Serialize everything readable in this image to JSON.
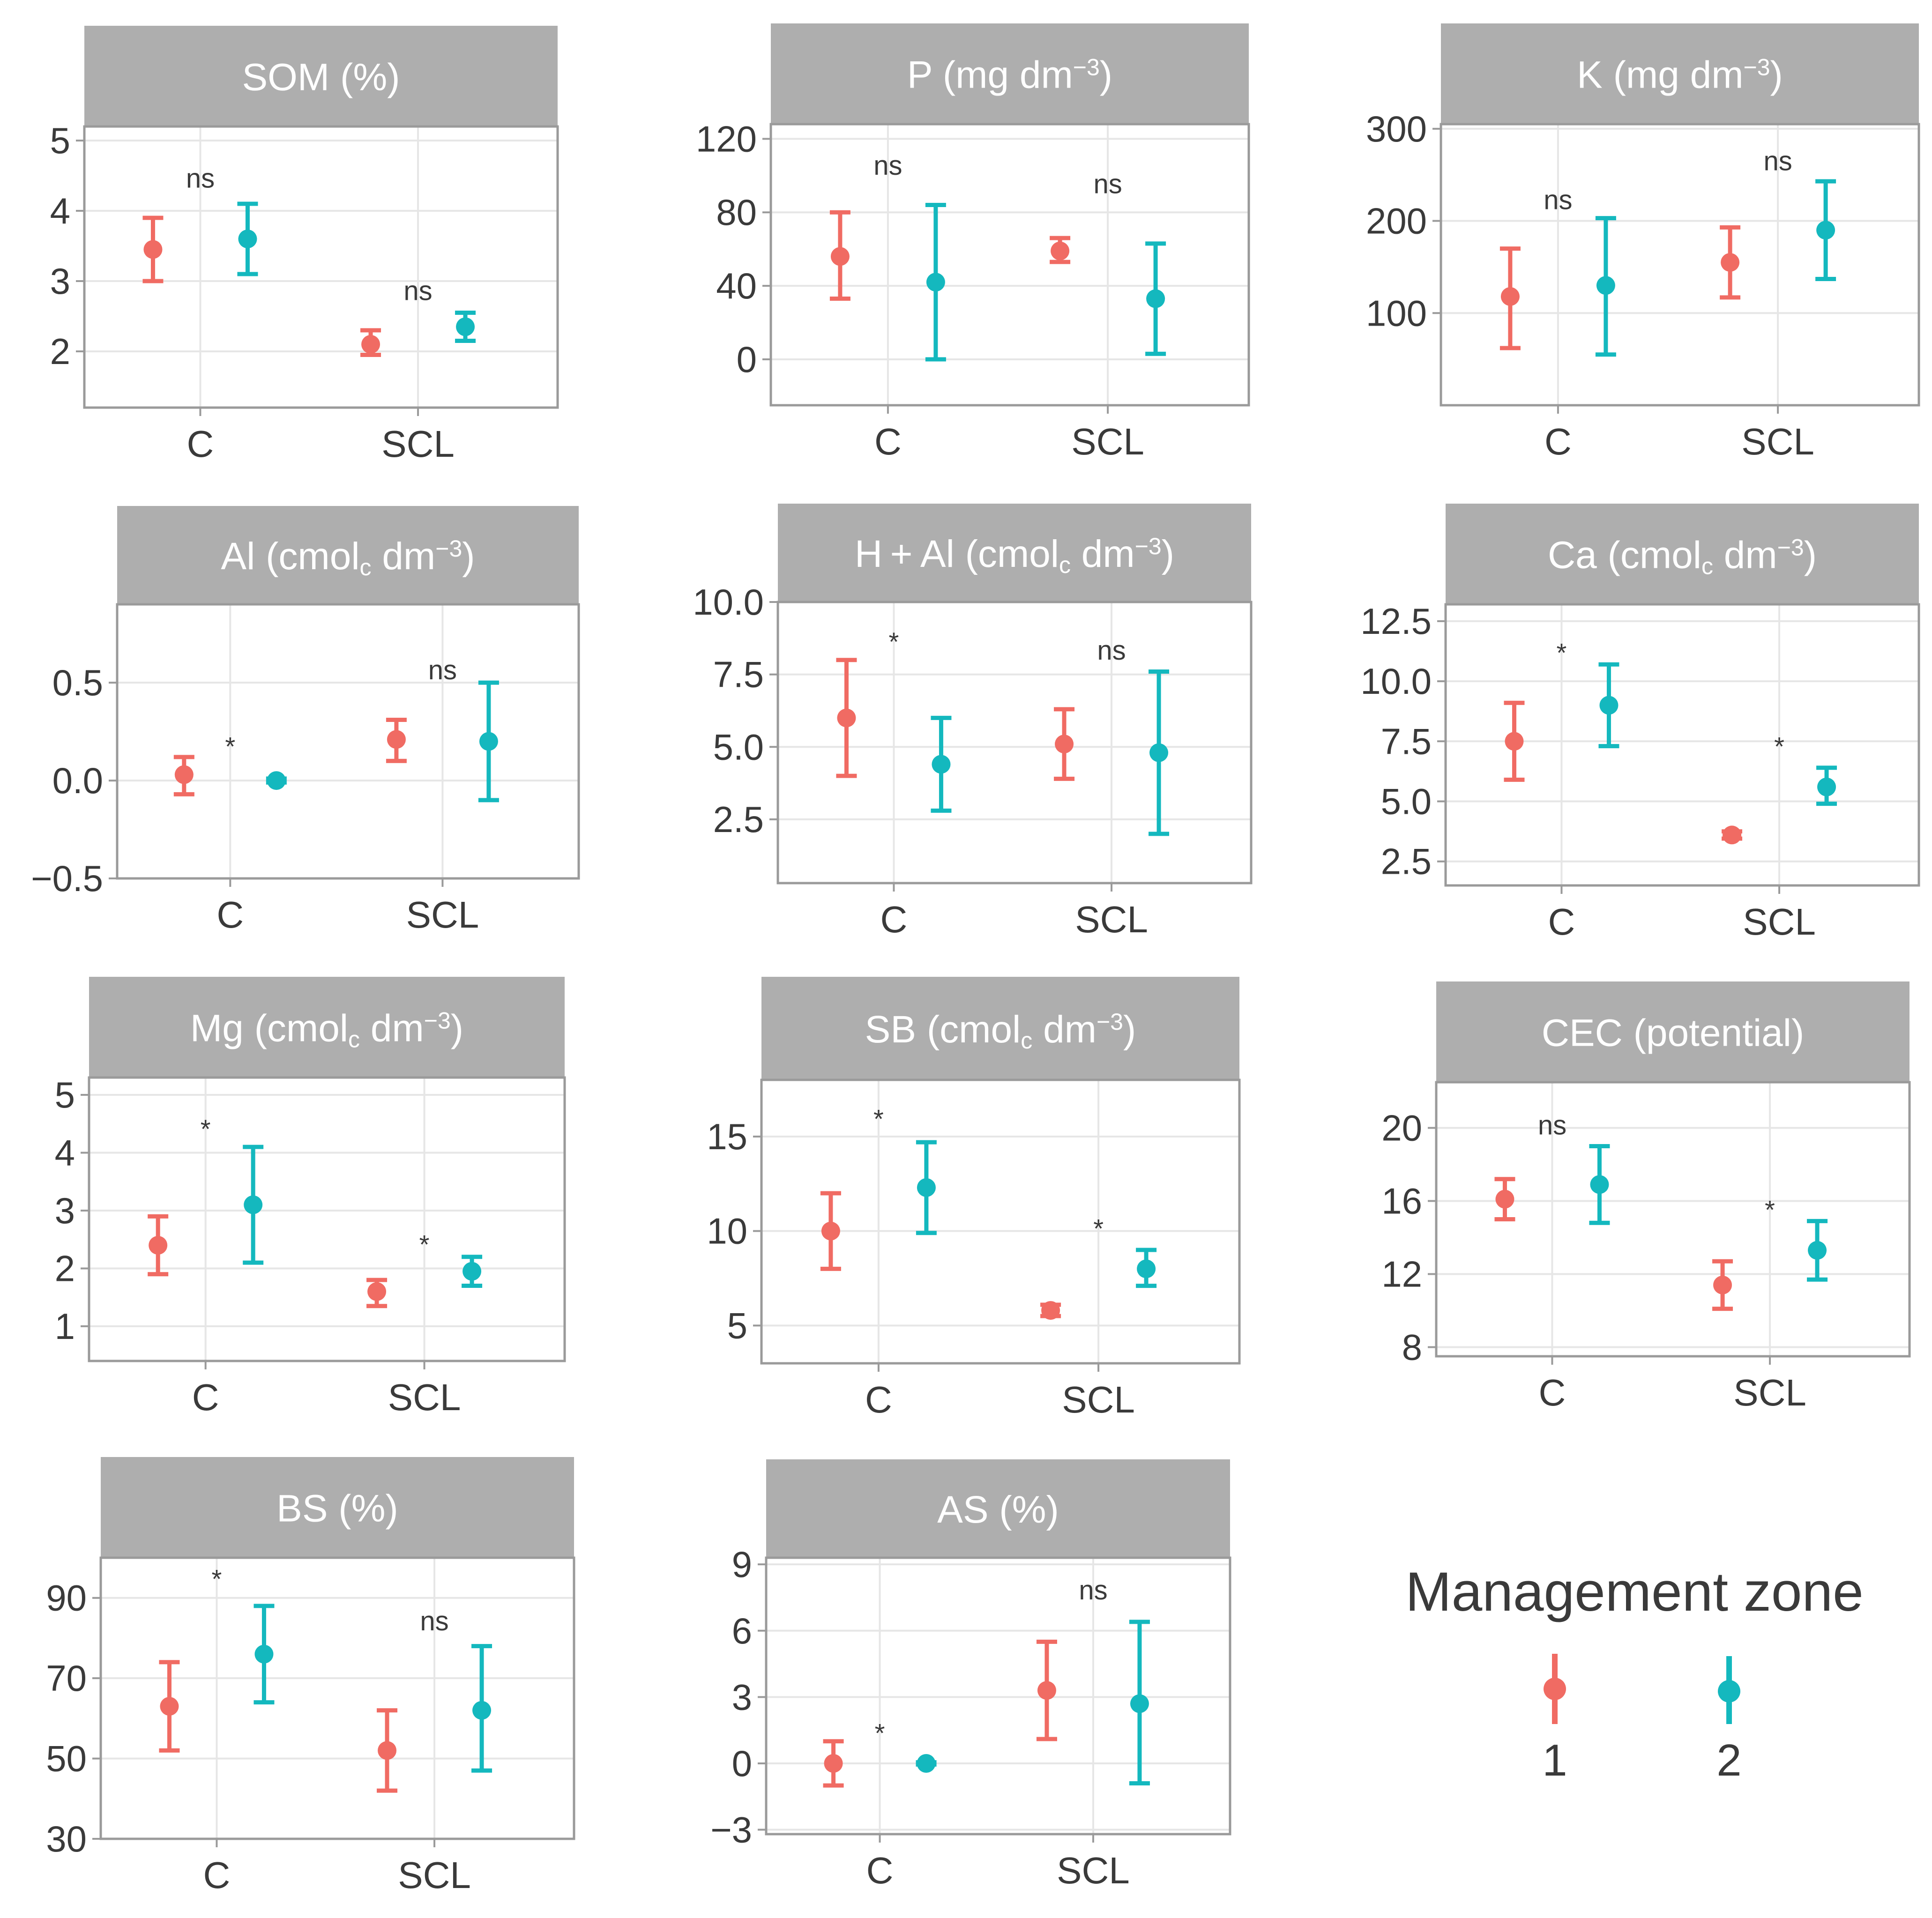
{
  "colors": {
    "zone1": "#F06B63",
    "zone2": "#14B8BE",
    "strip": "#AEAEAE",
    "grid": "#E6E6E6",
    "border": "#9A9A9A",
    "text": "#3A3A3A",
    "stripText": "#FFFFFF"
  },
  "legend": {
    "title": "Management zone",
    "items": [
      {
        "label": "1",
        "color_key": "zone1"
      },
      {
        "label": "2",
        "color_key": "zone2"
      }
    ]
  },
  "chart_data": [
    {
      "type": "errorbar",
      "title": "SOM (%)",
      "categories": [
        "C",
        "SCL"
      ],
      "ylim": [
        1.2,
        5.2
      ],
      "yticks": [
        {
          "v": 2,
          "t": "2"
        },
        {
          "v": 3,
          "t": "3"
        },
        {
          "v": 4,
          "t": "4"
        },
        {
          "v": 5,
          "t": "5"
        }
      ],
      "series": [
        {
          "name": "1",
          "points": [
            {
              "mean": 3.45,
              "lo": 3.0,
              "hi": 3.9
            },
            {
              "mean": 2.1,
              "lo": 1.95,
              "hi": 2.3
            }
          ]
        },
        {
          "name": "2",
          "points": [
            {
              "mean": 3.6,
              "lo": 3.1,
              "hi": 4.1
            },
            {
              "mean": 2.35,
              "lo": 2.15,
              "hi": 2.55
            }
          ]
        }
      ],
      "significance": [
        {
          "text": "ns",
          "y": 4.45
        },
        {
          "text": "ns",
          "y": 2.85
        }
      ]
    },
    {
      "type": "errorbar",
      "title": "P (mg dm",
      "title_sup": "−3",
      "title_end": ")",
      "categories": [
        "C",
        "SCL"
      ],
      "ylim": [
        -25,
        128
      ],
      "yticks": [
        {
          "v": 0,
          "t": "0"
        },
        {
          "v": 40,
          "t": "40"
        },
        {
          "v": 80,
          "t": "80"
        },
        {
          "v": 120,
          "t": "120"
        }
      ],
      "series": [
        {
          "name": "1",
          "points": [
            {
              "mean": 56,
              "lo": 33,
              "hi": 80
            },
            {
              "mean": 59,
              "lo": 53,
              "hi": 66
            }
          ]
        },
        {
          "name": "2",
          "points": [
            {
              "mean": 42,
              "lo": 0,
              "hi": 84
            },
            {
              "mean": 33,
              "lo": 3,
              "hi": 63
            }
          ]
        }
      ],
      "significance": [
        {
          "text": "ns",
          "y": 105
        },
        {
          "text": "ns",
          "y": 95
        }
      ]
    },
    {
      "type": "errorbar",
      "title": "K (mg dm",
      "title_sup": "−3",
      "title_end": ")",
      "categories": [
        "C",
        "SCL"
      ],
      "ylim": [
        0,
        305
      ],
      "yticks": [
        {
          "v": 100,
          "t": "100"
        },
        {
          "v": 200,
          "t": "200"
        },
        {
          "v": 300,
          "t": "300"
        }
      ],
      "series": [
        {
          "name": "1",
          "points": [
            {
              "mean": 118,
              "lo": 62,
              "hi": 170
            },
            {
              "mean": 155,
              "lo": 117,
              "hi": 193
            }
          ]
        },
        {
          "name": "2",
          "points": [
            {
              "mean": 130,
              "lo": 55,
              "hi": 203
            },
            {
              "mean": 190,
              "lo": 137,
              "hi": 243
            }
          ]
        }
      ],
      "significance": [
        {
          "text": "ns",
          "y": 222
        },
        {
          "text": "ns",
          "y": 264
        }
      ]
    },
    {
      "type": "errorbar",
      "title": "Al (cmol",
      "title_sub": "c",
      "title_mid": " dm",
      "title_sup": "−3",
      "title_end": ")",
      "categories": [
        "C",
        "SCL"
      ],
      "ylim": [
        -0.5,
        0.9
      ],
      "yticks": [
        {
          "v": -0.5,
          "t": "−0.5"
        },
        {
          "v": 0.0,
          "t": "0.0"
        },
        {
          "v": 0.5,
          "t": "0.5"
        }
      ],
      "series": [
        {
          "name": "1",
          "points": [
            {
              "mean": 0.03,
              "lo": -0.07,
              "hi": 0.12
            },
            {
              "mean": 0.21,
              "lo": 0.1,
              "hi": 0.31
            }
          ]
        },
        {
          "name": "2",
          "points": [
            {
              "mean": 0.0,
              "lo": -0.01,
              "hi": 0.01
            },
            {
              "mean": 0.2,
              "lo": -0.1,
              "hi": 0.5
            }
          ]
        }
      ],
      "significance": [
        {
          "text": "*",
          "y": 0.2
        },
        {
          "text": "ns",
          "y": 0.56
        }
      ]
    },
    {
      "type": "errorbar",
      "title": "H + Al (cmol",
      "title_sub": "c",
      "title_mid": " dm",
      "title_sup": "−3",
      "title_end": ")",
      "categories": [
        "C",
        "SCL"
      ],
      "ylim": [
        0.3,
        10.0
      ],
      "yticks": [
        {
          "v": 2.5,
          "t": "2.5"
        },
        {
          "v": 5.0,
          "t": "5.0"
        },
        {
          "v": 7.5,
          "t": "7.5"
        },
        {
          "v": 10.0,
          "t": "10.0"
        }
      ],
      "series": [
        {
          "name": "1",
          "points": [
            {
              "mean": 6.0,
              "lo": 4.0,
              "hi": 8.0
            },
            {
              "mean": 5.1,
              "lo": 3.9,
              "hi": 6.3
            }
          ]
        },
        {
          "name": "2",
          "points": [
            {
              "mean": 4.4,
              "lo": 2.8,
              "hi": 6.0
            },
            {
              "mean": 4.8,
              "lo": 2.0,
              "hi": 7.6
            }
          ]
        }
      ],
      "significance": [
        {
          "text": "*",
          "y": 8.8
        },
        {
          "text": "ns",
          "y": 8.3
        }
      ]
    },
    {
      "type": "errorbar",
      "title": "Ca (cmol",
      "title_sub": "c",
      "title_mid": " dm",
      "title_sup": "−3",
      "title_end": ")",
      "categories": [
        "C",
        "SCL"
      ],
      "ylim": [
        1.5,
        13.2
      ],
      "yticks": [
        {
          "v": 2.5,
          "t": "2.5"
        },
        {
          "v": 5.0,
          "t": "5.0"
        },
        {
          "v": 7.5,
          "t": "7.5"
        },
        {
          "v": 10.0,
          "t": "10.0"
        },
        {
          "v": 12.5,
          "t": "12.5"
        }
      ],
      "series": [
        {
          "name": "1",
          "points": [
            {
              "mean": 7.5,
              "lo": 5.9,
              "hi": 9.1
            },
            {
              "mean": 3.6,
              "lo": 3.45,
              "hi": 3.75
            }
          ]
        },
        {
          "name": "2",
          "points": [
            {
              "mean": 9.0,
              "lo": 7.3,
              "hi": 10.7
            },
            {
              "mean": 5.6,
              "lo": 4.9,
              "hi": 6.4
            }
          ]
        }
      ],
      "significance": [
        {
          "text": "*",
          "y": 11.4
        },
        {
          "text": "*",
          "y": 7.5
        }
      ]
    },
    {
      "type": "errorbar",
      "title": "Mg (cmol",
      "title_sub": "c",
      "title_mid": " dm",
      "title_sup": "−3",
      "title_end": ")",
      "categories": [
        "C",
        "SCL"
      ],
      "ylim": [
        0.4,
        5.3
      ],
      "yticks": [
        {
          "v": 1,
          "t": "1"
        },
        {
          "v": 2,
          "t": "2"
        },
        {
          "v": 3,
          "t": "3"
        },
        {
          "v": 4,
          "t": "4"
        },
        {
          "v": 5,
          "t": "5"
        }
      ],
      "series": [
        {
          "name": "1",
          "points": [
            {
              "mean": 2.4,
              "lo": 1.9,
              "hi": 2.9
            },
            {
              "mean": 1.6,
              "lo": 1.35,
              "hi": 1.8
            }
          ]
        },
        {
          "name": "2",
          "points": [
            {
              "mean": 3.1,
              "lo": 2.1,
              "hi": 4.1
            },
            {
              "mean": 1.95,
              "lo": 1.7,
              "hi": 2.2
            }
          ]
        }
      ],
      "significance": [
        {
          "text": "*",
          "y": 4.5
        },
        {
          "text": "*",
          "y": 2.5
        }
      ]
    },
    {
      "type": "errorbar",
      "title": "SB (cmol",
      "title_sub": "c",
      "title_mid": " dm",
      "title_sup": "−3",
      "title_end": ")",
      "categories": [
        "C",
        "SCL"
      ],
      "ylim": [
        3.0,
        18.0
      ],
      "yticks": [
        {
          "v": 5,
          "t": "5"
        },
        {
          "v": 10,
          "t": "10"
        },
        {
          "v": 15,
          "t": "15"
        }
      ],
      "series": [
        {
          "name": "1",
          "points": [
            {
              "mean": 10.0,
              "lo": 8.0,
              "hi": 12.0
            },
            {
              "mean": 5.8,
              "lo": 5.5,
              "hi": 6.1
            }
          ]
        },
        {
          "name": "2",
          "points": [
            {
              "mean": 12.3,
              "lo": 9.9,
              "hi": 14.7
            },
            {
              "mean": 8.0,
              "lo": 7.1,
              "hi": 9.0
            }
          ]
        }
      ],
      "significance": [
        {
          "text": "*",
          "y": 16.2
        },
        {
          "text": "*",
          "y": 10.4
        }
      ]
    },
    {
      "type": "errorbar",
      "title": "CEC (potential)",
      "categories": [
        "C",
        "SCL"
      ],
      "ylim": [
        7.5,
        22.5
      ],
      "yticks": [
        {
          "v": 8,
          "t": "8"
        },
        {
          "v": 12,
          "t": "12"
        },
        {
          "v": 16,
          "t": "16"
        },
        {
          "v": 20,
          "t": "20"
        }
      ],
      "series": [
        {
          "name": "1",
          "points": [
            {
              "mean": 16.1,
              "lo": 15.0,
              "hi": 17.2
            },
            {
              "mean": 11.4,
              "lo": 10.1,
              "hi": 12.7
            }
          ]
        },
        {
          "name": "2",
          "points": [
            {
              "mean": 16.9,
              "lo": 14.8,
              "hi": 19.0
            },
            {
              "mean": 13.3,
              "lo": 11.7,
              "hi": 14.9
            }
          ]
        }
      ],
      "significance": [
        {
          "text": "ns",
          "y": 20.1
        },
        {
          "text": "*",
          "y": 15.8
        }
      ]
    },
    {
      "type": "errorbar",
      "title": "BS (%)",
      "categories": [
        "C",
        "SCL"
      ],
      "ylim": [
        30,
        100
      ],
      "yticks": [
        {
          "v": 30,
          "t": "30"
        },
        {
          "v": 50,
          "t": "50"
        },
        {
          "v": 70,
          "t": "70"
        },
        {
          "v": 90,
          "t": "90"
        }
      ],
      "series": [
        {
          "name": "1",
          "points": [
            {
              "mean": 63,
              "lo": 52,
              "hi": 74
            },
            {
              "mean": 52,
              "lo": 42,
              "hi": 62
            }
          ]
        },
        {
          "name": "2",
          "points": [
            {
              "mean": 76,
              "lo": 64,
              "hi": 88
            },
            {
              "mean": 62,
              "lo": 47,
              "hi": 78
            }
          ]
        }
      ],
      "significance": [
        {
          "text": "*",
          "y": 96
        },
        {
          "text": "ns",
          "y": 84
        }
      ]
    },
    {
      "type": "errorbar",
      "title": "AS (%)",
      "categories": [
        "C",
        "SCL"
      ],
      "ylim": [
        -3.2,
        9.3
      ],
      "yticks": [
        {
          "v": -3,
          "t": "−3"
        },
        {
          "v": 0,
          "t": "0"
        },
        {
          "v": 3,
          "t": "3"
        },
        {
          "v": 6,
          "t": "6"
        },
        {
          "v": 9,
          "t": "9"
        }
      ],
      "series": [
        {
          "name": "1",
          "points": [
            {
              "mean": 0.0,
              "lo": -1.0,
              "hi": 1.0
            },
            {
              "mean": 3.3,
              "lo": 1.1,
              "hi": 5.5
            }
          ]
        },
        {
          "name": "2",
          "points": [
            {
              "mean": 0.0,
              "lo": -0.05,
              "hi": 0.05
            },
            {
              "mean": 2.7,
              "lo": -0.9,
              "hi": 6.4
            }
          ]
        }
      ],
      "significance": [
        {
          "text": "*",
          "y": 1.6
        },
        {
          "text": "ns",
          "y": 7.8
        }
      ]
    }
  ]
}
